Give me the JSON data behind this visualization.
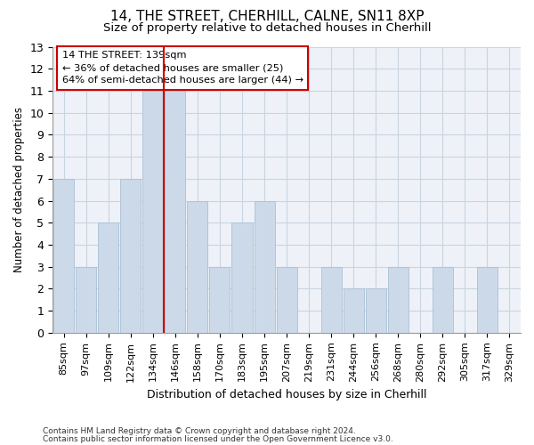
{
  "title1": "14, THE STREET, CHERHILL, CALNE, SN11 8XP",
  "title2": "Size of property relative to detached houses in Cherhill",
  "xlabel": "Distribution of detached houses by size in Cherhill",
  "ylabel": "Number of detached properties",
  "categories": [
    "85sqm",
    "97sqm",
    "109sqm",
    "122sqm",
    "134sqm",
    "146sqm",
    "158sqm",
    "170sqm",
    "183sqm",
    "195sqm",
    "207sqm",
    "219sqm",
    "231sqm",
    "244sqm",
    "256sqm",
    "268sqm",
    "280sqm",
    "292sqm",
    "305sqm",
    "317sqm",
    "329sqm"
  ],
  "values": [
    7,
    3,
    5,
    7,
    11,
    11,
    6,
    3,
    5,
    6,
    3,
    0,
    3,
    2,
    2,
    3,
    0,
    3,
    0,
    3,
    0
  ],
  "bar_color": "#ccd9e8",
  "bar_edge_color": "#b0c4d8",
  "vline_x_index": 5,
  "vline_color": "#cc0000",
  "annotation_title": "14 THE STREET: 139sqm",
  "annotation_line2": "← 36% of detached houses are smaller (25)",
  "annotation_line3": "64% of semi-detached houses are larger (44) →",
  "annotation_box_color": "#cc0000",
  "ylim": [
    0,
    13
  ],
  "yticks": [
    0,
    1,
    2,
    3,
    4,
    5,
    6,
    7,
    8,
    9,
    10,
    11,
    12,
    13
  ],
  "footer1": "Contains HM Land Registry data © Crown copyright and database right 2024.",
  "footer2": "Contains public sector information licensed under the Open Government Licence v3.0.",
  "bg_color": "#eef2f8",
  "grid_color": "#c8d4e0",
  "title1_fontsize": 11,
  "title2_fontsize": 9.5,
  "xlabel_fontsize": 9,
  "ylabel_fontsize": 8.5,
  "tick_fontsize": 8,
  "footer_fontsize": 6.5
}
